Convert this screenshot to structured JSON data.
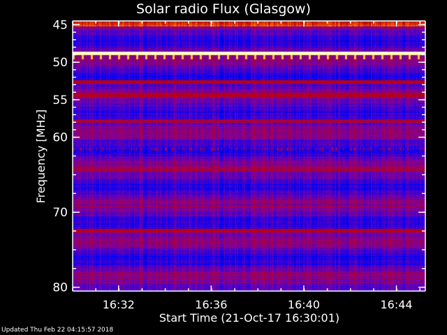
{
  "chart_data": {
    "type": "heatmap",
    "title": "Solar radio Flux (Glasgow)",
    "xlabel": "Start Time (21-Oct-17 16:30:01)",
    "ylabel": "Frequency [MHz]",
    "xlim": [
      "16:30:01",
      "16:45:15"
    ],
    "ylim": [
      80.5,
      44.5
    ],
    "x_ticks": [
      "16:32",
      "16:36",
      "16:40",
      "16:44"
    ],
    "y_ticks": [
      45,
      50,
      55,
      60,
      70,
      80
    ],
    "colormap": [
      "#000060",
      "#0000ff",
      "#8000a0",
      "#c00000",
      "#ff8000",
      "#ffff80",
      "#ffffff"
    ],
    "features": [
      {
        "freq_mhz": 48.8,
        "kind": "continuous-band",
        "intensity": 1.0
      },
      {
        "freq_mhz": 49.3,
        "kind": "periodic-spikes",
        "intensity": 0.8
      },
      {
        "freq_mhz": 52.6,
        "kind": "continuous-band",
        "intensity": 0.5
      },
      {
        "freq_mhz": 54.3,
        "kind": "continuous-band",
        "intensity": 0.45
      },
      {
        "freq_mhz": 57.8,
        "kind": "continuous-band",
        "intensity": 0.4
      },
      {
        "freq_mhz": 61.5,
        "kind": "intermittent",
        "intensity": 0.4
      },
      {
        "freq_mhz": 64.3,
        "kind": "continuous-band",
        "intensity": 0.35
      },
      {
        "freq_mhz": 72.4,
        "kind": "continuous-band",
        "intensity": 0.5
      },
      {
        "freq_mhz": 74.2,
        "kind": "intermittent",
        "intensity": 0.35
      }
    ]
  },
  "footer": {
    "updated": "Updated Thu Feb 22 04:15:57 2018"
  }
}
